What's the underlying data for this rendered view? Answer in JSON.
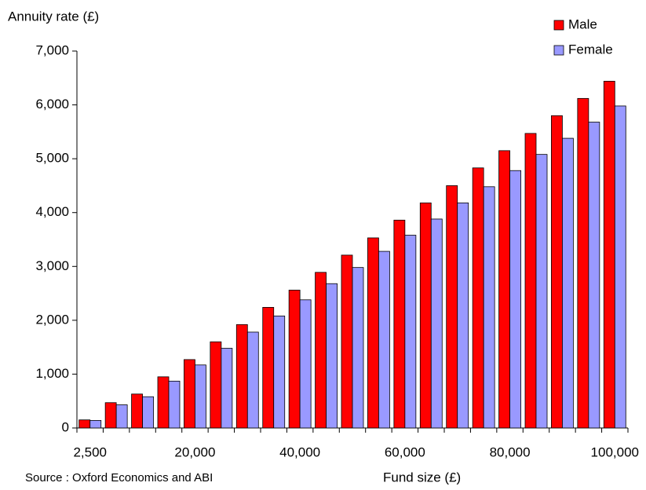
{
  "chart_data": {
    "type": "bar",
    "title": "Annuity rate (£)",
    "x_label": "Fund size (£)",
    "source": "Source : Oxford Economics and ABI",
    "categories": [
      "2,500",
      null,
      null,
      null,
      "20,000",
      null,
      null,
      null,
      "40,000",
      null,
      null,
      null,
      "60,000",
      null,
      null,
      null,
      "80,000",
      null,
      null,
      null,
      "100,000"
    ],
    "series": [
      {
        "name": "Male",
        "color": "#ff0000",
        "values": [
          150,
          470,
          630,
          950,
          1270,
          1600,
          1920,
          2240,
          2560,
          2890,
          3210,
          3530,
          3860,
          4180,
          4500,
          4830,
          5150,
          5470,
          5800,
          6120,
          6440
        ]
      },
      {
        "name": "Female",
        "color": "#9999ff",
        "values": [
          140,
          430,
          580,
          870,
          1170,
          1480,
          1780,
          2080,
          2380,
          2680,
          2980,
          3280,
          3580,
          3880,
          4180,
          4480,
          4780,
          5080,
          5380,
          5680,
          5980
        ]
      }
    ],
    "ylim": [
      0,
      7000
    ],
    "yticks": [
      0,
      {
        "value": 1000,
        "label": "1,000"
      },
      {
        "value": 2000,
        "label": "2,000"
      },
      {
        "value": 3000,
        "label": "3,000"
      },
      {
        "value": 4000,
        "label": "4,000"
      },
      {
        "value": 5000,
        "label": "5,000"
      },
      {
        "value": 6000,
        "label": "6,000"
      },
      {
        "value": 7000,
        "label": "7,000"
      }
    ],
    "legend": "top-right"
  }
}
